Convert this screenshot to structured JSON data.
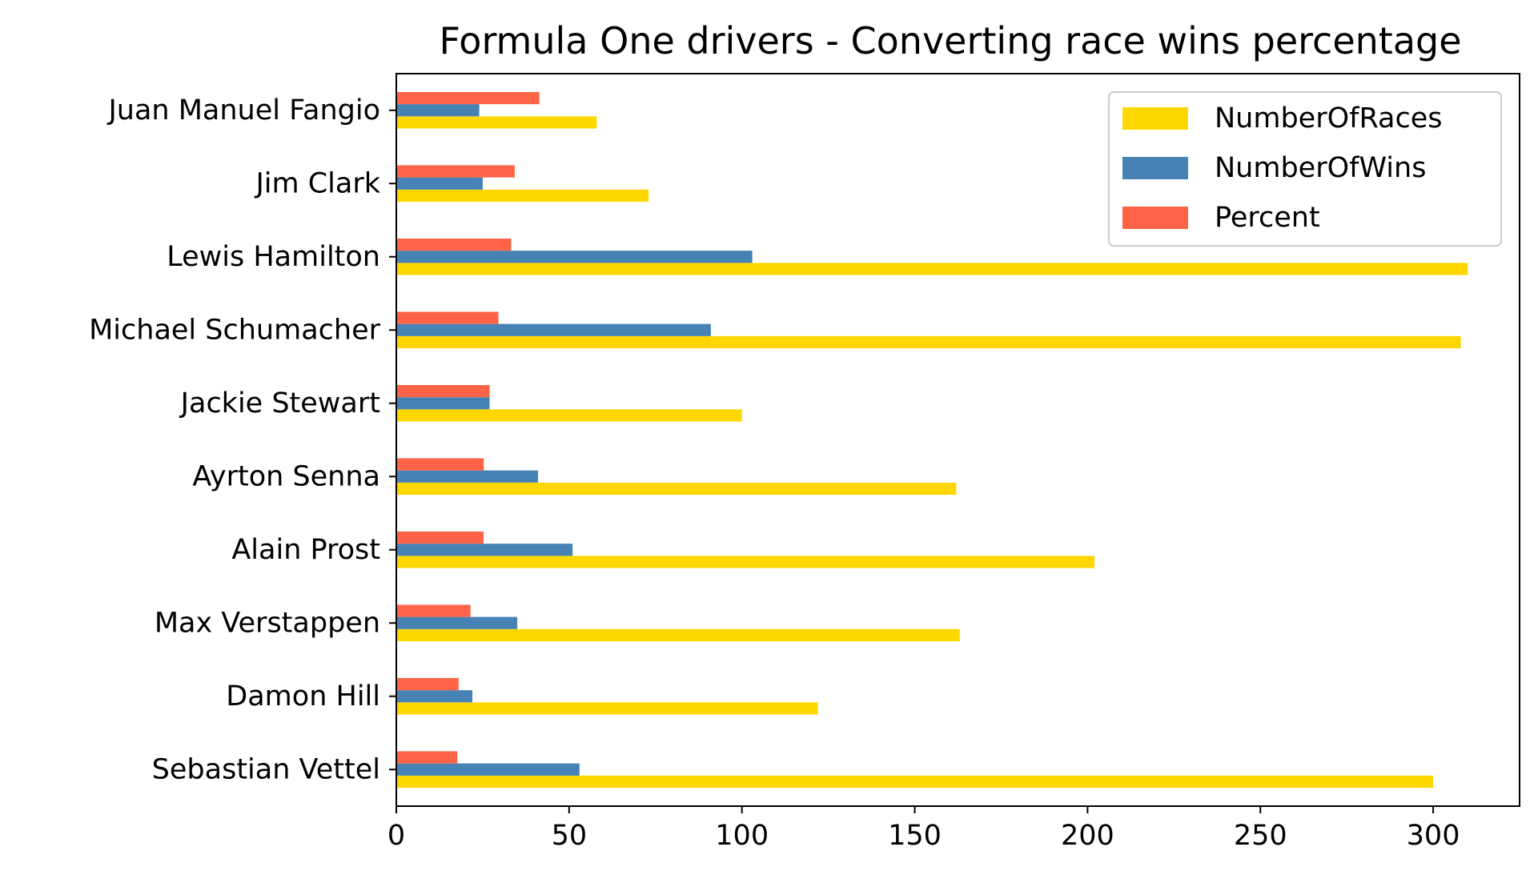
{
  "chart_data": {
    "type": "bar",
    "orientation": "horizontal",
    "title": "Formula One drivers - Converting race wins percentage",
    "xlabel": "",
    "ylabel": "",
    "xlim": [
      0,
      325
    ],
    "xticks": [
      0,
      50,
      100,
      150,
      200,
      250,
      300
    ],
    "categories": [
      "Juan Manuel Fangio",
      "Jim Clark",
      "Lewis Hamilton",
      "Michael Schumacher",
      "Jackie Stewart",
      "Ayrton Senna",
      "Alain Prost",
      "Max Verstappen",
      "Damon Hill",
      "Sebastian Vettel"
    ],
    "series": [
      {
        "name": "NumberOfRaces",
        "color": "#FFD700",
        "values": [
          58,
          73,
          310,
          308,
          100,
          162,
          202,
          163,
          122,
          300
        ]
      },
      {
        "name": "NumberOfWins",
        "color": "#4682B4",
        "values": [
          24,
          25,
          103,
          91,
          27,
          41,
          51,
          35,
          22,
          53
        ]
      },
      {
        "name": "Percent",
        "color": "#FF6347",
        "values": [
          41.38,
          34.25,
          33.23,
          29.55,
          27.0,
          25.31,
          25.25,
          21.47,
          18.03,
          17.67
        ]
      }
    ],
    "grid": false,
    "legend": "top-right"
  }
}
